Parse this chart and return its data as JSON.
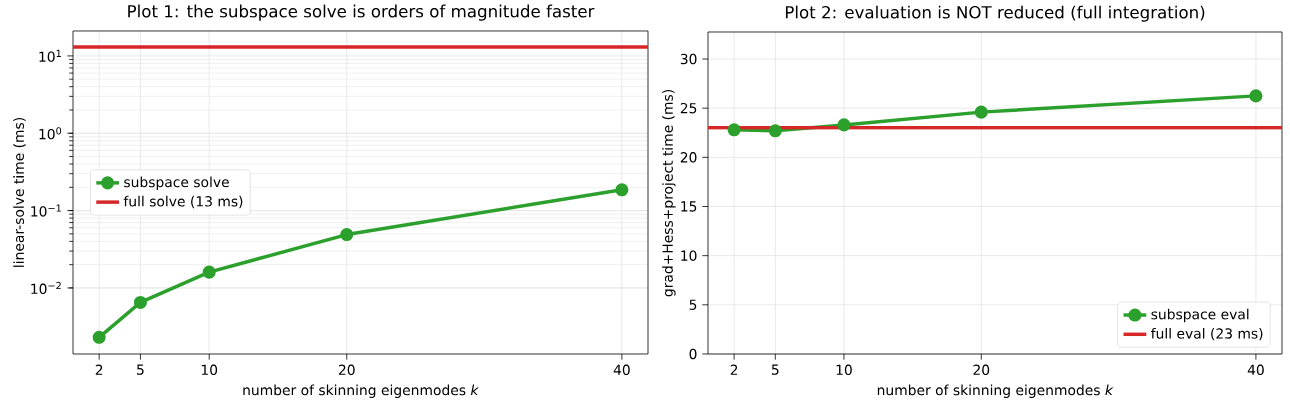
{
  "chart_data": [
    {
      "type": "line",
      "title": "Plot 1: the subspace solve is orders of magnitude faster",
      "xlabel": "number of skinning eigenmodes  *k*",
      "ylabel": "linear-solve time  (ms)",
      "x": [
        2,
        5,
        10,
        20,
        40
      ],
      "series": [
        {
          "name": "subspace solve",
          "color": "#2ca02c",
          "values": [
            0.0023,
            0.0065,
            0.016,
            0.049,
            0.186
          ]
        }
      ],
      "ref_lines": [
        {
          "axis": "y",
          "value": 13,
          "label": "full solve (13 ms)",
          "color": "#d62728"
        }
      ],
      "log": "y",
      "xlim": [
        0.1,
        41.9
      ],
      "ylim": [
        0.0014,
        21
      ],
      "xticks": [
        2,
        5,
        10,
        20,
        40
      ],
      "yticks": [
        {
          "value": 0.01,
          "label": "10$^{−2}$"
        },
        {
          "value": 0.1,
          "label": "10$^{−1}$"
        },
        {
          "value": 1,
          "label": "10$^{0}$"
        },
        {
          "value": 10,
          "label": "10$^{1}$"
        }
      ],
      "grid": true,
      "legend": "left",
      "marker": "circle"
    },
    {
      "type": "line",
      "title": "Plot 2: evaluation is NOT reduced (full integration)",
      "xlabel": "number of skinning eigenmodes  *k*",
      "ylabel": "grad+Hess+project time  (ms)",
      "x": [
        2,
        5,
        10,
        20,
        40
      ],
      "series": [
        {
          "name": "subspace eval",
          "color": "#2ca02c",
          "values": [
            22.8,
            22.7,
            23.3,
            24.6,
            26.25
          ]
        }
      ],
      "ref_lines": [
        {
          "axis": "y",
          "value": 23,
          "label": "full eval (23 ms)",
          "color": "#d62728"
        }
      ],
      "xlim": [
        0.1,
        41.9
      ],
      "ylim": [
        0,
        32.75
      ],
      "xticks": [
        2,
        5,
        10,
        20,
        40
      ],
      "yticks": [
        0,
        5,
        10,
        15,
        20,
        25,
        30
      ],
      "grid": true,
      "legend": "bottom right",
      "marker": "circle"
    }
  ]
}
